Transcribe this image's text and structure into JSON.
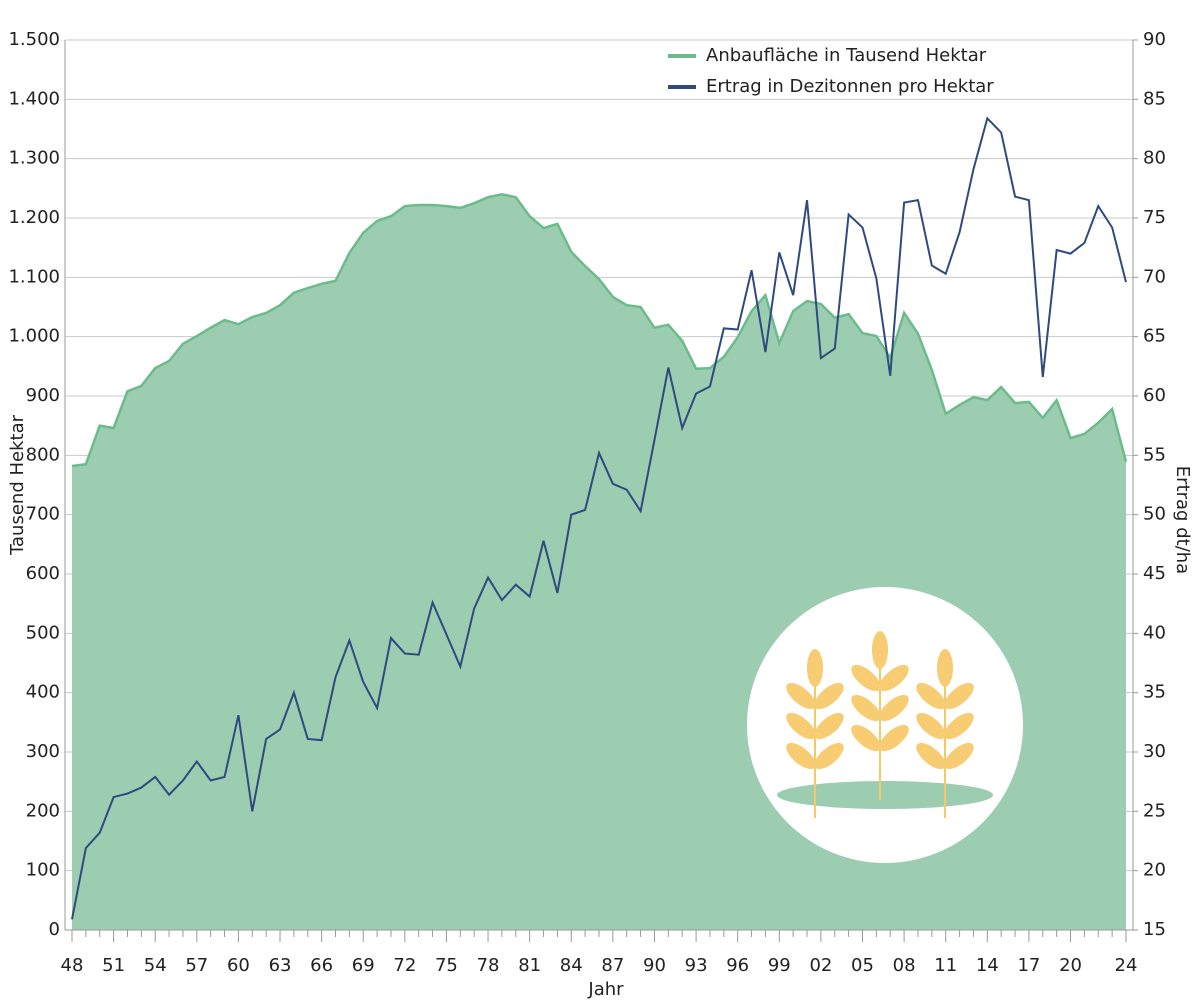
{
  "chart_data": {
    "type": "combo",
    "x_label": "Jahr",
    "y_label": "Tausend Hektar",
    "y2_label": "Ertrag dt/ha",
    "categories": [
      "48",
      null,
      null,
      "51",
      null,
      null,
      "54",
      null,
      null,
      "57",
      null,
      null,
      "60",
      null,
      null,
      "63",
      null,
      null,
      "66",
      null,
      null,
      "69",
      null,
      null,
      "72",
      null,
      null,
      "75",
      null,
      null,
      "78",
      null,
      null,
      "81",
      null,
      null,
      "84",
      null,
      null,
      "87",
      null,
      null,
      "90",
      null,
      null,
      "93",
      null,
      null,
      "96",
      null,
      null,
      "99",
      null,
      null,
      "02",
      null,
      null,
      "05",
      null,
      null,
      "08",
      null,
      null,
      "11",
      null,
      null,
      "14",
      null,
      null,
      "17",
      null,
      null,
      "20",
      null,
      null,
      null,
      "24"
    ],
    "series": [
      {
        "name": "Anbaufläche in Tausend Hektar",
        "type": "area",
        "axis": "y",
        "color": "#6cbb8a",
        "fill": "#9dcdb0",
        "values": [
          782,
          785,
          850,
          846,
          908,
          917,
          947,
          959,
          988,
          1001,
          1015,
          1028,
          1021,
          1033,
          1040,
          1053,
          1074,
          1082,
          1089,
          1094,
          1141,
          1175,
          1195,
          1203,
          1220,
          1222,
          1222,
          1220,
          1217,
          1225,
          1235,
          1240,
          1235,
          1203,
          1183,
          1190,
          1143,
          1119,
          1097,
          1067,
          1053,
          1050,
          1015,
          1020,
          993,
          946,
          947,
          966,
          999,
          1043,
          1070,
          989,
          1043,
          1060,
          1055,
          1032,
          1038,
          1006,
          1001,
          964,
          1040,
          1005,
          944,
          870,
          885,
          898,
          893,
          915,
          888,
          890,
          863,
          893,
          829,
          836,
          855,
          878,
          789
        ]
      },
      {
        "name": "Ertrag in Dezitonnen pro Hektar",
        "type": "line",
        "axis": "y2",
        "color": "#2e4a7e",
        "values": [
          15.9,
          21.9,
          23.2,
          26.2,
          26.5,
          27.0,
          27.9,
          26.4,
          27.6,
          29.2,
          27.6,
          27.9,
          33.1,
          25.0,
          31.1,
          31.9,
          35.0,
          31.1,
          31.0,
          36.3,
          39.4,
          35.9,
          33.7,
          39.6,
          38.3,
          38.2,
          42.6,
          39.9,
          37.2,
          42.1,
          44.7,
          42.8,
          44.1,
          43.1,
          47.8,
          43.4,
          50.0,
          50.4,
          55.2,
          52.6,
          52.1,
          50.3,
          56.3,
          62.4,
          57.3,
          60.2,
          60.8,
          65.7,
          65.6,
          70.6,
          63.7,
          72.1,
          68.5,
          76.5,
          63.2,
          64.0,
          75.3,
          74.2,
          69.9,
          61.7,
          76.3,
          76.5,
          71.0,
          70.3,
          73.8,
          79.1,
          83.4,
          82.2,
          76.8,
          76.5,
          61.6,
          72.3,
          72.0,
          72.9,
          76.0,
          74.2,
          69.6
        ]
      }
    ],
    "ylim": [
      0,
      1500
    ],
    "yticks": [
      0,
      100,
      200,
      300,
      400,
      500,
      600,
      700,
      800,
      900,
      {
        "value": 1000,
        "label": "1.000"
      },
      {
        "value": 1100,
        "label": "1.100"
      },
      {
        "value": 1200,
        "label": "1.200"
      },
      {
        "value": 1300,
        "label": "1.300"
      },
      {
        "value": 1400,
        "label": "1.400"
      },
      {
        "value": 1500,
        "label": "1.500"
      }
    ],
    "y2lim": [
      15,
      90
    ],
    "y2ticks": [
      15,
      20,
      25,
      30,
      35,
      40,
      45,
      50,
      55,
      60,
      65,
      70,
      75,
      80,
      85,
      90
    ],
    "grid": true,
    "legend": "top-right"
  }
}
